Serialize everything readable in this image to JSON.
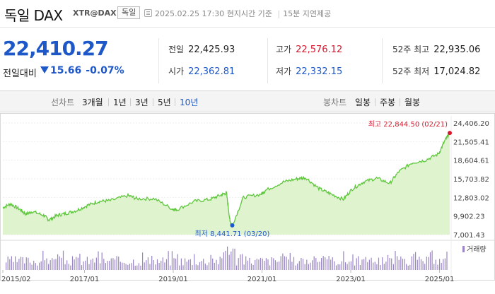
{
  "header": {
    "title": "독일 DAX",
    "symbol": "XTR@DAX",
    "country": "독일",
    "datetime": "2025.02.25 17:30",
    "time_basis": "현지시간 기준",
    "delay": "15분 지연제공"
  },
  "quote": {
    "price": "22,410.27",
    "change_label": "전일대비",
    "change_value": "15.66",
    "change_percent": "-0.07%",
    "direction": "down"
  },
  "stats": {
    "prev_close_label": "전일",
    "prev_close": "22,425.93",
    "open_label": "시가",
    "open": "22,362.81",
    "high_label": "고가",
    "high": "22,576.12",
    "low_label": "저가",
    "low": "22,332.15",
    "high52_label": "52주 최고",
    "high52": "22,935.06",
    "low52_label": "52주 최저",
    "low52": "17,024.82"
  },
  "toolbar": {
    "line_chart_label": "선차트",
    "periods": [
      "3개월",
      "1년",
      "3년",
      "5년",
      "10년"
    ],
    "active_period": "10년",
    "candle_label": "봉차트",
    "candles": [
      "일봉",
      "주봉",
      "월봉"
    ]
  },
  "colors": {
    "up": "#d8182f",
    "down": "#1e58c8",
    "line": "#5ec73c",
    "fill": "#dff3cf",
    "volume": "#9a86c4"
  },
  "chart_data": {
    "type": "area",
    "x_ticks": [
      "2015/02",
      "2017/01",
      "2019/01",
      "2021/01",
      "2023/01",
      "2025/01"
    ],
    "y_ticks": [
      "24,406.20",
      "21,505.41",
      "18,604.61",
      "15,703.82",
      "12,803.02",
      "9,902.23",
      "7,001.43"
    ],
    "ylim": [
      7001.43,
      24406.2
    ],
    "x": [
      2015.08,
      2015.25,
      2015.45,
      2015.6,
      2015.75,
      2016.0,
      2016.12,
      2016.3,
      2016.5,
      2016.75,
      2017.0,
      2017.25,
      2017.5,
      2017.9,
      2018.1,
      2018.5,
      2018.9,
      2019.0,
      2019.4,
      2019.75,
      2020.0,
      2020.12,
      2020.2,
      2020.25,
      2020.5,
      2020.9,
      2021.0,
      2021.4,
      2021.7,
      2021.9,
      2022.2,
      2022.45,
      2022.75,
      2022.95,
      2023.2,
      2023.5,
      2023.8,
      2024.0,
      2024.3,
      2024.6,
      2024.9,
      2025.05,
      2025.15
    ],
    "values": [
      11200,
      11800,
      11000,
      10200,
      10600,
      10000,
      9300,
      10000,
      10300,
      10800,
      11600,
      12200,
      12300,
      13100,
      12600,
      12600,
      11000,
      10900,
      12200,
      12500,
      13200,
      13500,
      9000,
      8441.71,
      12800,
      13300,
      13900,
      15200,
      15700,
      15900,
      14200,
      13400,
      12500,
      14100,
      15200,
      15800,
      15000,
      16800,
      18200,
      18600,
      19600,
      21800,
      22844.5
    ],
    "max_label": "최고",
    "max_value": "22,844.50",
    "max_date": "(02/21)",
    "min_label": "최저",
    "min_value": "8,441.71",
    "min_date": "(03/20)",
    "volume_label": "거래량"
  }
}
